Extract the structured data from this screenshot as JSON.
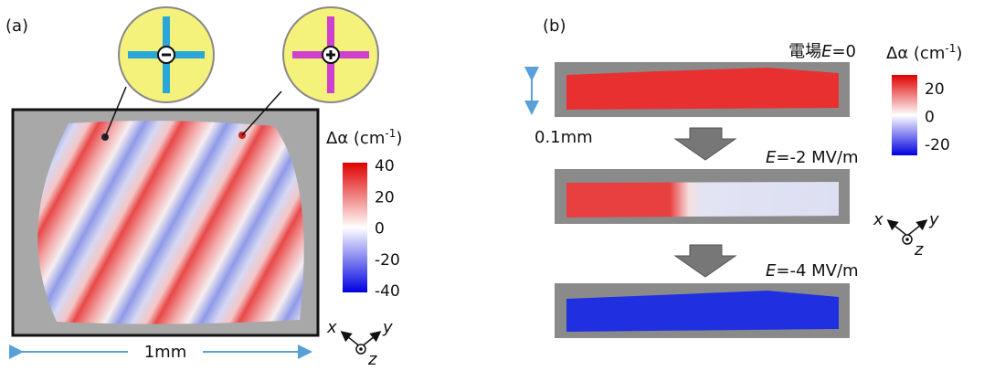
{
  "panel_a": {
    "label": "(a)",
    "colorbar": {
      "title": "Δα (cm",
      "exponent": "-1",
      "close": ")",
      "ticks": [
        "40",
        "20",
        "0",
        "-20",
        "-40"
      ]
    },
    "scale_bar": "1mm",
    "axes": [
      "x",
      "y",
      "z"
    ]
  },
  "panel_b": {
    "label": "(b)",
    "colorbar": {
      "title": "Δα (cm",
      "exponent": "-1",
      "close": ")",
      "ticks": [
        "20",
        "0",
        "-20"
      ]
    },
    "scale_bar": "0.1mm",
    "states": [
      {
        "prefix": "電場",
        "symbol": "E",
        "value": "=0"
      },
      {
        "prefix": "",
        "symbol": "E",
        "value": "=-2 MV/m"
      },
      {
        "prefix": "",
        "symbol": "E",
        "value": "=-4 MV/m"
      }
    ],
    "axes": [
      "x",
      "y",
      "z"
    ]
  }
}
